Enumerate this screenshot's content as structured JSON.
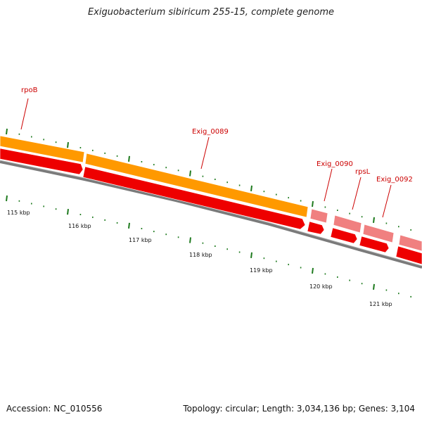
{
  "title": "Exiguobacterium sibiricum 255-15, complete genome",
  "accession_label": "Accession: NC_010556",
  "summary": "Topology: circular; Length: 3,034,136 bp; Genes: 3,104",
  "colors": {
    "backbone": "#808080",
    "cds_forward": "#ff0000",
    "gene_orange": "#ff9900",
    "gene_pink": "#f08080",
    "label_red": "#cc0000",
    "tick_green": "#1e7a1e"
  },
  "gene_labels": [
    "rpoB",
    "Exig_0089",
    "Exig_0090",
    "rpsL",
    "Exig_0092"
  ],
  "kbp_labels": [
    "115 kbp",
    "116 kbp",
    "117 kbp",
    "118 kbp",
    "119 kbp",
    "120 kbp",
    "121 kbp"
  ]
}
